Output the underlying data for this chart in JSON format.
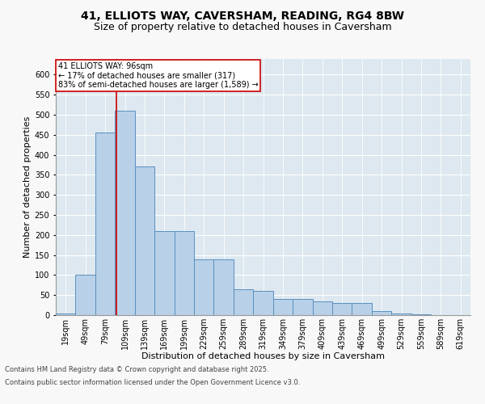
{
  "title_line1": "41, ELLIOTS WAY, CAVERSHAM, READING, RG4 8BW",
  "title_line2": "Size of property relative to detached houses in Caversham",
  "xlabel": "Distribution of detached houses by size in Caversham",
  "ylabel": "Number of detached properties",
  "bins": [
    "19sqm",
    "49sqm",
    "79sqm",
    "109sqm",
    "139sqm",
    "169sqm",
    "199sqm",
    "229sqm",
    "259sqm",
    "289sqm",
    "319sqm",
    "349sqm",
    "379sqm",
    "409sqm",
    "439sqm",
    "469sqm",
    "499sqm",
    "529sqm",
    "559sqm",
    "589sqm",
    "619sqm"
  ],
  "values": [
    5,
    100,
    455,
    510,
    370,
    210,
    210,
    140,
    140,
    65,
    60,
    40,
    40,
    35,
    30,
    30,
    10,
    5,
    2,
    1,
    0
  ],
  "bar_color": "#b8d0e8",
  "bar_edge_color": "#5a8fc0",
  "bar_edge_width": 0.7,
  "vline_color": "#cc0000",
  "vline_linewidth": 1.2,
  "vline_pos": 2.57,
  "annotation_text": "41 ELLIOTS WAY: 96sqm\n← 17% of detached houses are smaller (317)\n83% of semi-detached houses are larger (1,589) →",
  "annotation_box_color": "#cc0000",
  "annotation_bg": "#ffffff",
  "ylim": [
    0,
    640
  ],
  "yticks": [
    0,
    50,
    100,
    150,
    200,
    250,
    300,
    350,
    400,
    450,
    500,
    550,
    600
  ],
  "background_color": "#dde8f0",
  "grid_color": "#ffffff",
  "footer_line1": "Contains HM Land Registry data © Crown copyright and database right 2025.",
  "footer_line2": "Contains public sector information licensed under the Open Government Licence v3.0.",
  "title_fontsize": 10,
  "subtitle_fontsize": 9,
  "axis_label_fontsize": 8,
  "tick_fontsize": 7,
  "annotation_fontsize": 7,
  "footer_fontsize": 6
}
